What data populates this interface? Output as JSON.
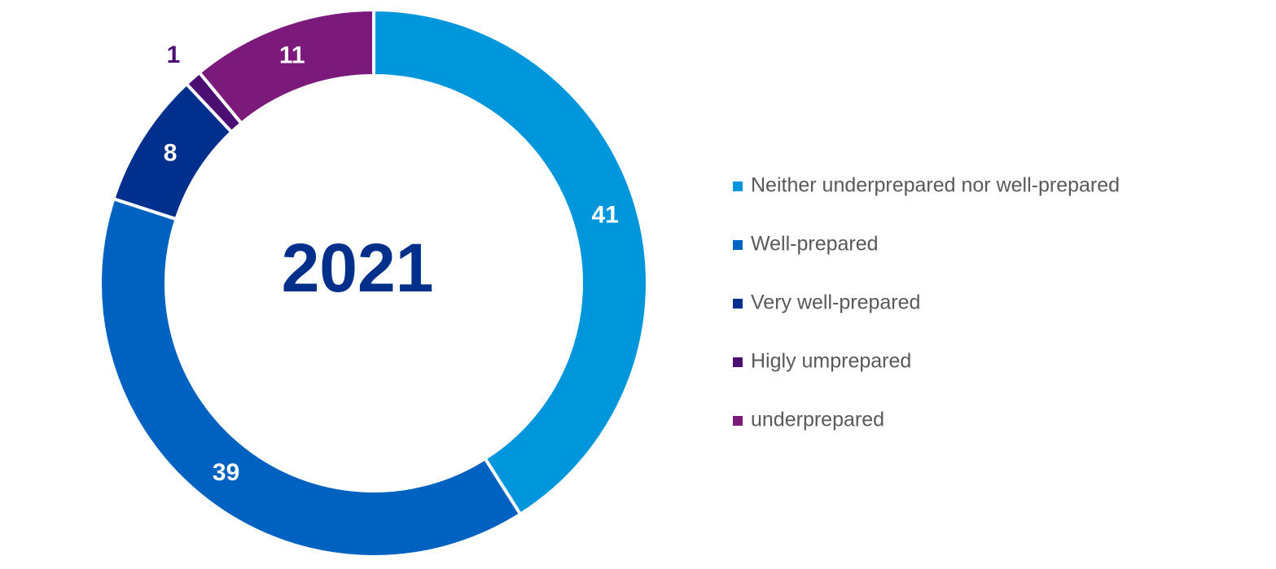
{
  "chart_data": {
    "type": "donut",
    "center_label": "2021",
    "categories": [
      "Neither underprepared nor well-prepared",
      "Well-prepared",
      "Very well-prepared",
      "Higly umprepared",
      "underprepared"
    ],
    "values": [
      41,
      39,
      8,
      1,
      11
    ],
    "colors": [
      "#0096dc",
      "#0062c0",
      "#002f8e",
      "#4b0f72",
      "#7c1a7c"
    ],
    "legend": "right"
  }
}
